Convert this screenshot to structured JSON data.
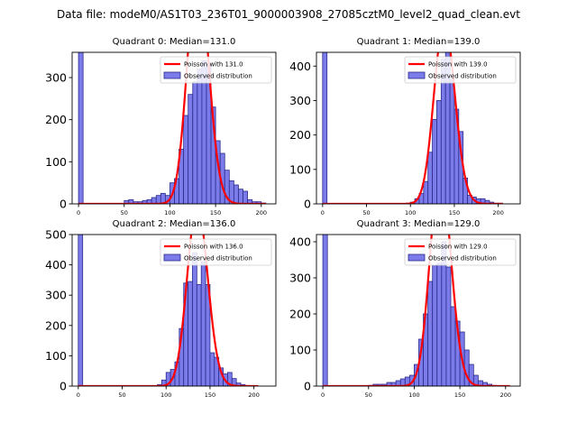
{
  "figure_title": "Data file: modeM0/AS1T03_236T01_9000003908_27085cztM0_level2_quad_clean.evt",
  "colors": {
    "hist_fill": "#7b7bea",
    "hist_edge": "#2b2b8c",
    "poisson_line": "#ff0000",
    "axes": "#000000"
  },
  "chart_data": [
    {
      "type": "bar",
      "quadrant": 0,
      "title": "Quadrant 0: Median=131.0",
      "legend": [
        "Poisson with 131.0",
        "Observed distribution"
      ],
      "legend_position": "top-right",
      "poisson_mean": 131.0,
      "bin_width": 5,
      "bins_start": 0,
      "counts": [
        360,
        0,
        0,
        0,
        0,
        0,
        0,
        0,
        0,
        0,
        8,
        10,
        5,
        5,
        8,
        10,
        15,
        20,
        25,
        20,
        50,
        60,
        130,
        210,
        260,
        290,
        320,
        340,
        330,
        230,
        150,
        120,
        80,
        55,
        45,
        35,
        30,
        10,
        5,
        5,
        2
      ],
      "xlim": [
        -7,
        216
      ],
      "ylim": [
        0,
        360
      ],
      "xticks": [
        0,
        50,
        100,
        150,
        200
      ],
      "yticks": [
        0,
        100,
        200,
        300
      ]
    },
    {
      "type": "bar",
      "quadrant": 1,
      "title": "Quadrant 1: Median=139.0",
      "legend": [
        "Poisson with 139.0",
        "Observed distribution"
      ],
      "legend_position": "top-right",
      "poisson_mean": 139.0,
      "bin_width": 5,
      "bins_start": 0,
      "counts": [
        440,
        0,
        0,
        0,
        0,
        0,
        0,
        0,
        0,
        0,
        0,
        0,
        0,
        0,
        0,
        0,
        0,
        0,
        0,
        2,
        5,
        15,
        30,
        65,
        150,
        245,
        300,
        420,
        440,
        360,
        275,
        210,
        75,
        25,
        20,
        15,
        15,
        10,
        5,
        2,
        2
      ],
      "xlim": [
        -7,
        225
      ],
      "ylim": [
        0,
        440
      ],
      "xticks": [
        0,
        50,
        100,
        150,
        200
      ],
      "yticks": [
        0,
        100,
        200,
        300,
        400
      ]
    },
    {
      "type": "bar",
      "quadrant": 2,
      "title": "Quadrant 2: Median=136.0",
      "legend": [
        "Poisson with 136.0",
        "Observed distribution"
      ],
      "legend_position": "top-right",
      "poisson_mean": 136.0,
      "bin_width": 5,
      "bins_start": 0,
      "counts": [
        500,
        0,
        0,
        0,
        0,
        0,
        0,
        0,
        0,
        0,
        0,
        0,
        0,
        0,
        0,
        0,
        0,
        0,
        5,
        20,
        45,
        55,
        80,
        190,
        340,
        345,
        440,
        335,
        410,
        335,
        110,
        95,
        60,
        40,
        45,
        25,
        10,
        5,
        2,
        0,
        0
      ],
      "xlim": [
        -7,
        225
      ],
      "ylim": [
        0,
        500
      ],
      "xticks": [
        0,
        50,
        100,
        150,
        200
      ],
      "yticks": [
        0,
        100,
        200,
        300,
        400,
        500
      ]
    },
    {
      "type": "bar",
      "quadrant": 3,
      "title": "Quadrant 3: Median=129.0",
      "legend": [
        "Poisson with 129.0",
        "Observed distribution"
      ],
      "legend_position": "top-right",
      "poisson_mean": 129.0,
      "bin_width": 5,
      "bins_start": 0,
      "counts": [
        420,
        0,
        0,
        0,
        0,
        0,
        0,
        0,
        0,
        0,
        2,
        5,
        5,
        5,
        10,
        10,
        15,
        20,
        25,
        30,
        60,
        130,
        200,
        290,
        335,
        340,
        400,
        330,
        220,
        180,
        150,
        100,
        60,
        30,
        15,
        10,
        5,
        2,
        0,
        0,
        0
      ],
      "xlim": [
        -7,
        216
      ],
      "ylim": [
        0,
        420
      ],
      "xticks": [
        0,
        50,
        100,
        150,
        200
      ],
      "yticks": [
        0,
        100,
        200,
        300,
        400
      ]
    }
  ]
}
